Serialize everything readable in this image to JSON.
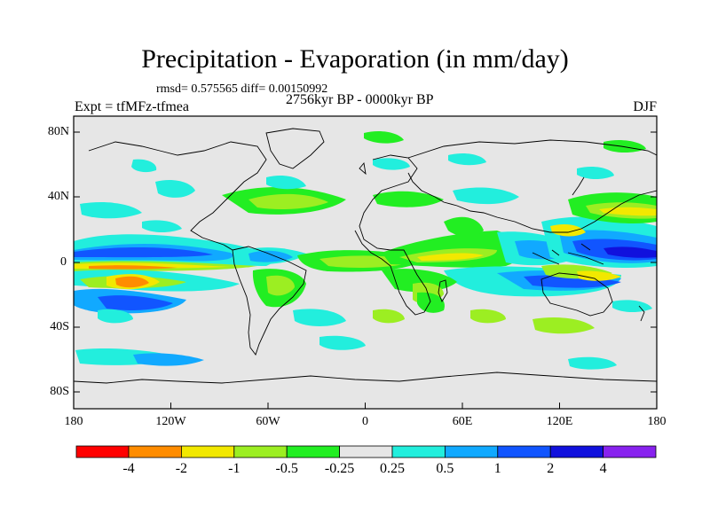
{
  "title": "Precipitation - Evaporation (in mm/day)",
  "stats": "rmsd= 0.575565 diff= 0.00150992",
  "period": "2756kyr BP - 0000kyr BP",
  "experiment": "Expt = tfMFz-tfmea",
  "season": "DJF",
  "y_ticks": [
    "80N",
    "40N",
    "0",
    "40S",
    "80S"
  ],
  "x_ticks": [
    "180",
    "120W",
    "60W",
    "0",
    "60E",
    "120E",
    "180"
  ],
  "colorbar": {
    "labels": [
      "-4",
      "-2",
      "-1",
      "-0.5",
      "-0.25",
      "0.25",
      "0.5",
      "1",
      "2",
      "4"
    ],
    "colors": [
      "#ff0000",
      "#ff8c00",
      "#f2e800",
      "#9cee22",
      "#22ee22",
      "#e6e6e6",
      "#22eedd",
      "#11a9ff",
      "#1155ff",
      "#1111dd",
      "#8822ee"
    ]
  },
  "chart_data": {
    "type": "map",
    "title": "Precipitation - Evaporation (in mm/day)",
    "projection": "equirectangular",
    "lon_range": [
      -180,
      180
    ],
    "lat_range": [
      -90,
      90
    ],
    "levels": [
      -4,
      -2,
      -1,
      -0.5,
      -0.25,
      0.25,
      0.5,
      1,
      2,
      4
    ]
  }
}
